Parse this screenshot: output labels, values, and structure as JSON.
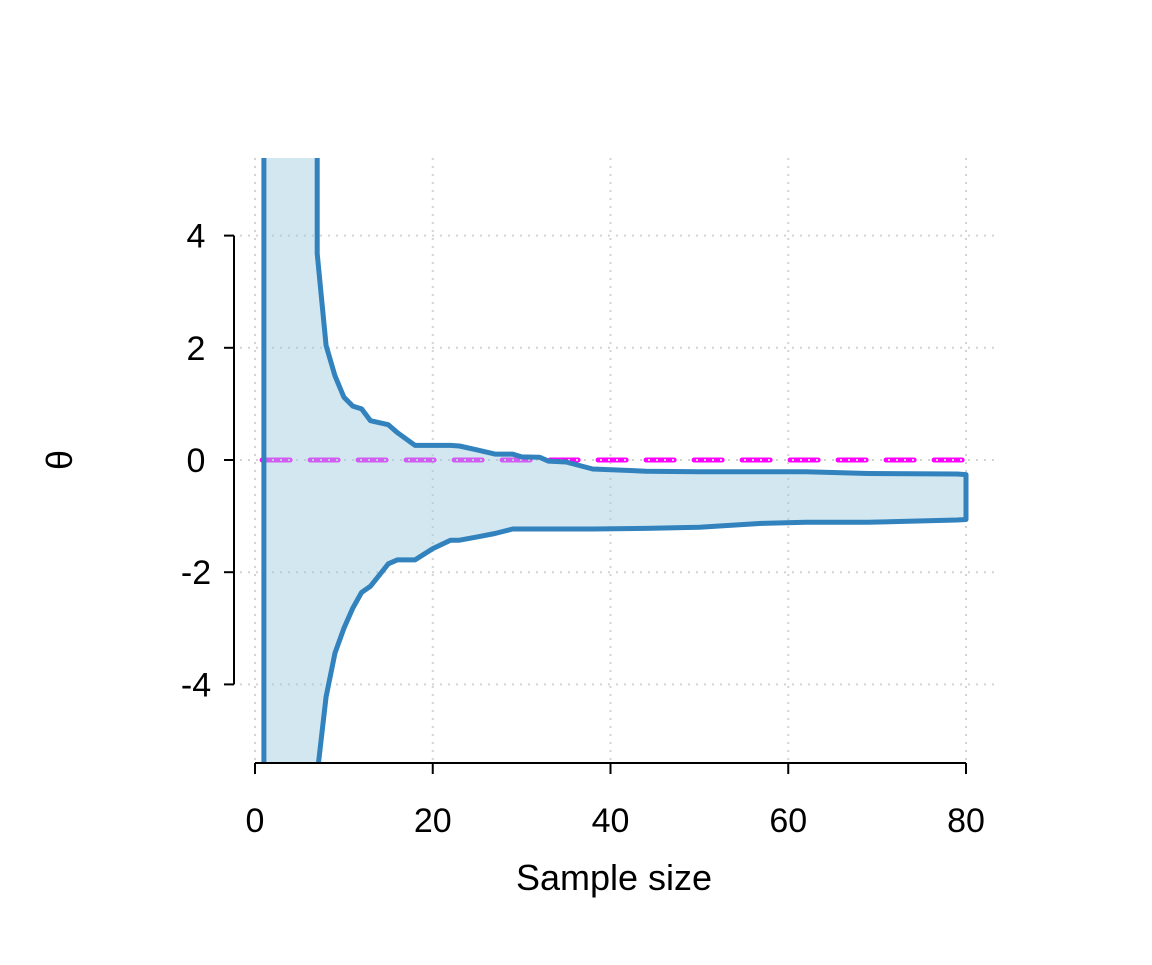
{
  "chart_data": {
    "type": "area",
    "title": "",
    "xlabel": "Sample size",
    "ylabel": "θ",
    "xlim": [
      0,
      80
    ],
    "ylim": [
      -5.4,
      5.4
    ],
    "xticks": [
      0,
      20,
      40,
      60,
      80
    ],
    "yticks": [
      -4,
      -2,
      0,
      2,
      4
    ],
    "xtick_labels": [
      "0",
      "20",
      "40",
      "60",
      "80"
    ],
    "ytick_labels": [
      "-4",
      "-2",
      "0",
      "2",
      "4"
    ],
    "grid": true,
    "reference_line": {
      "y": 0,
      "color": "#ff00ff",
      "style": "dashed"
    },
    "band": {
      "line_color": "#3182bd",
      "fill_color": "#9ecae1",
      "x": [
        1,
        6,
        7,
        8,
        9,
        10,
        11,
        12,
        13,
        15,
        16,
        18,
        20,
        22,
        23,
        25,
        27,
        29,
        30,
        32,
        33,
        35,
        38,
        44,
        50,
        57,
        62,
        69,
        79,
        80
      ],
      "upper": [
        1000,
        1000,
        3.68,
        2.04,
        1.5,
        1.12,
        0.96,
        0.91,
        0.7,
        0.63,
        0.49,
        0.26,
        0.26,
        0.26,
        0.25,
        0.18,
        0.105,
        0.105,
        0.056,
        0.05,
        -0.02,
        -0.035,
        -0.16,
        -0.2,
        -0.21,
        -0.21,
        -0.21,
        -0.24,
        -0.25,
        -0.26
      ],
      "lower": [
        -1000,
        -1000,
        -5.6,
        -4.22,
        -3.44,
        -3.0,
        -2.64,
        -2.36,
        -2.25,
        -1.85,
        -1.78,
        -1.78,
        -1.58,
        -1.43,
        -1.43,
        -1.37,
        -1.31,
        -1.23,
        -1.23,
        -1.23,
        -1.23,
        -1.23,
        -1.23,
        -1.22,
        -1.2,
        -1.13,
        -1.11,
        -1.11,
        -1.07,
        -1.06
      ]
    }
  }
}
